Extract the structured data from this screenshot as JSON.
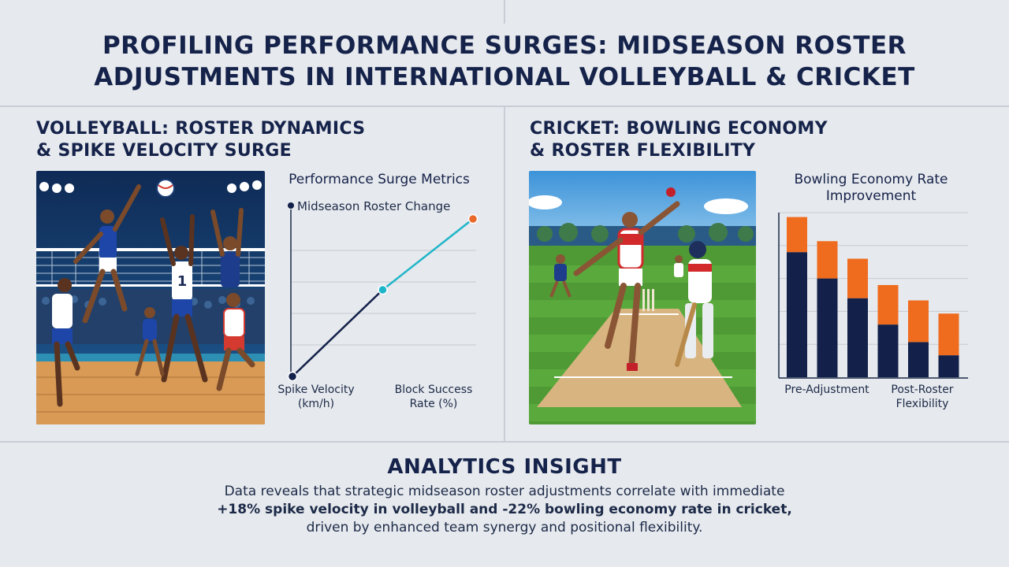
{
  "header": {
    "title_line1": "PROFILING PERFORMANCE SURGES: MIDSEASON ROSTER",
    "title_line2": "ADJUSTMENTS IN INTERNATIONAL VOLLEYBALL & CRICKET"
  },
  "volleyball": {
    "title_line1": "VOLLEYBALL: ROSTER DYNAMICS",
    "title_line2": "& SPIKE VELOCITY SURGE",
    "image": "volleyball-match-illustration"
  },
  "cricket": {
    "title_line1": "CRICKET: BOWLING ECONOMY",
    "title_line2": "& ROSTER FLEXIBILITY",
    "image": "cricket-match-illustration"
  },
  "chart_data": [
    {
      "type": "line",
      "title": "Performance Surge Metrics",
      "annotation": "Midseason Roster Change",
      "xlabels": [
        "Spike Velocity",
        "(km/h)",
        "Block Success",
        "Rate (%)"
      ],
      "series": [
        {
          "color": "#12204a",
          "x": [
            0,
            1
          ],
          "y": [
            0,
            0.55
          ]
        },
        {
          "color": "#1fb5c9",
          "x": [
            1,
            2
          ],
          "y": [
            0.55,
            1.0
          ]
        }
      ],
      "markers": [
        {
          "x": 0,
          "y": 0,
          "color": "#12204a"
        },
        {
          "x": 1,
          "y": 0.55,
          "color": "#1fb5c9"
        },
        {
          "x": 2,
          "y": 1.0,
          "color": "#e8692a"
        }
      ],
      "grid": true,
      "colors": {
        "line1": "#12204a",
        "line2": "#1fb5c9",
        "end_marker": "#e8692a"
      }
    },
    {
      "type": "bar",
      "title_line1": "Bowling Economy Rate",
      "title_line2": "Improvement",
      "xlabels": [
        "Pre-Adjustment",
        "Post-Roster",
        "Flexibility"
      ],
      "stacked": true,
      "series": [
        {
          "color": "#12204a",
          "values": [
            5.7,
            4.5,
            3.6,
            2.4,
            1.6,
            1.0
          ]
        },
        {
          "color": "#ef6c1f",
          "values": [
            1.6,
            1.7,
            1.8,
            1.8,
            1.9,
            1.9
          ]
        }
      ],
      "ylim": [
        0,
        7.5
      ],
      "grid": true,
      "colors": {
        "base": "#12204a",
        "top": "#ef6c1f"
      }
    }
  ],
  "insight": {
    "title": "ANALYTICS INSIGHT",
    "line1": "Data reveals that strategic midseason roster adjustments correlate with immediate",
    "line2": "+18% spike velocity in volleyball and -22% bowling economy rate in cricket,",
    "line3": "driven by enhanced team synergy and positional flexibility."
  }
}
